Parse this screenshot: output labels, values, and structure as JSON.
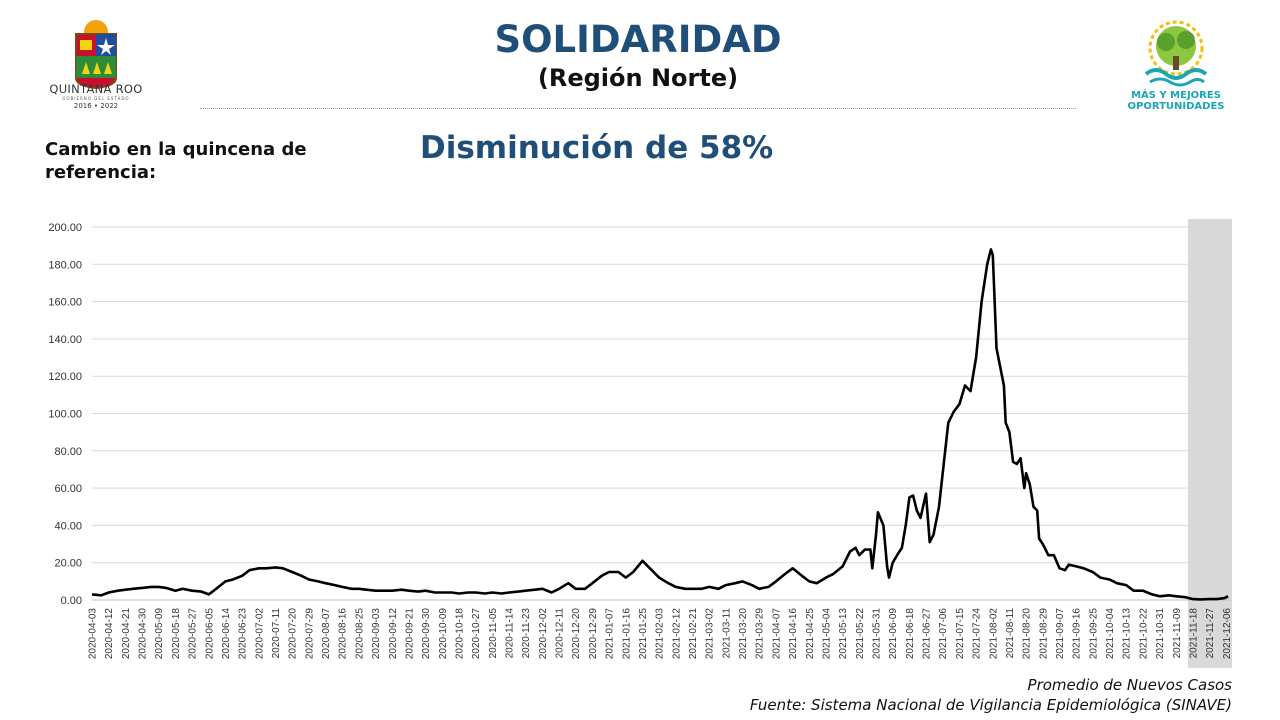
{
  "header": {
    "title": "SOLIDARIDAD",
    "subtitle": "(Región Norte)"
  },
  "logos": {
    "left": {
      "name": "QUINTANA ROO",
      "sub": "GOBIERNO DEL ESTADO",
      "years": "2016 • 2022"
    },
    "right": {
      "line1": "MÁS Y MEJORES",
      "line2": "OPORTUNIDADES"
    }
  },
  "summary": {
    "label": "Cambio en la quincena de referencia:",
    "headline": "Disminución de 58%"
  },
  "footer": {
    "series": "Promedio de Nuevos Casos",
    "source": "Fuente: Sistema Nacional de Vigilancia Epidemiológica (SINAVE)"
  },
  "colors": {
    "title": "#1f4e79",
    "line": "#000000",
    "highlight": "#d9d9d9",
    "grid": "#d9d9d9"
  },
  "chart_data": {
    "type": "line",
    "title": "",
    "xlabel": "",
    "ylabel": "",
    "ylim": [
      0,
      200
    ],
    "yticks": [
      "0.00",
      "20.00",
      "40.00",
      "60.00",
      "80.00",
      "100.00",
      "120.00",
      "140.00",
      "160.00",
      "180.00",
      "200.00"
    ],
    "xticks": [
      "2020-04-03",
      "2020-04-12",
      "2020-04-21",
      "2020-04-30",
      "2020-05-09",
      "2020-05-18",
      "2020-05-27",
      "2020-06-05",
      "2020-06-14",
      "2020-06-23",
      "2020-07-02",
      "2020-07-11",
      "2020-07-20",
      "2020-07-29",
      "2020-08-07",
      "2020-08-16",
      "2020-08-25",
      "2020-09-03",
      "2020-09-12",
      "2020-09-21",
      "2020-09-30",
      "2020-10-09",
      "2020-10-18",
      "2020-10-27",
      "2020-11-05",
      "2020-11-14",
      "2020-11-23",
      "2020-12-02",
      "2020-12-11",
      "2020-12-20",
      "2020-12-29",
      "2021-01-07",
      "2021-01-16",
      "2021-01-25",
      "2021-02-03",
      "2021-02-12",
      "2021-02-21",
      "2021-03-02",
      "2021-03-11",
      "2021-03-20",
      "2021-03-29",
      "2021-04-07",
      "2021-04-16",
      "2021-04-25",
      "2021-05-04",
      "2021-05-13",
      "2021-05-22",
      "2021-05-31",
      "2021-06-09",
      "2021-06-18",
      "2021-06-27",
      "2021-07-06",
      "2021-07-15",
      "2021-07-24",
      "2021-08-02",
      "2021-08-11",
      "2021-08-20",
      "2021-08-29",
      "2021-09-07",
      "2021-09-16",
      "2021-09-25",
      "2021-10-04",
      "2021-10-13",
      "2021-10-22",
      "2021-10-31",
      "2021-11-09",
      "2021-11-18",
      "2021-11-27",
      "2021-12-06"
    ],
    "highlight_range": [
      "2021-11-18",
      "2021-12-08"
    ],
    "grid": true,
    "series": [
      {
        "values": [
          [
            "2020-04-03",
            3
          ],
          [
            "2020-04-08",
            2.5
          ],
          [
            "2020-04-12",
            4
          ],
          [
            "2020-04-17",
            5
          ],
          [
            "2020-04-21",
            5.5
          ],
          [
            "2020-04-25",
            6
          ],
          [
            "2020-04-30",
            6.5
          ],
          [
            "2020-05-05",
            7
          ],
          [
            "2020-05-09",
            7
          ],
          [
            "2020-05-13",
            6.5
          ],
          [
            "2020-05-18",
            5
          ],
          [
            "2020-05-22",
            6
          ],
          [
            "2020-05-27",
            5
          ],
          [
            "2020-06-01",
            4.5
          ],
          [
            "2020-06-05",
            3
          ],
          [
            "2020-06-09",
            6
          ],
          [
            "2020-06-14",
            10
          ],
          [
            "2020-06-18",
            11
          ],
          [
            "2020-06-23",
            13
          ],
          [
            "2020-06-27",
            16
          ],
          [
            "2020-07-02",
            17
          ],
          [
            "2020-07-06",
            17
          ],
          [
            "2020-07-11",
            17.5
          ],
          [
            "2020-07-15",
            17
          ],
          [
            "2020-07-20",
            15
          ],
          [
            "2020-07-25",
            13
          ],
          [
            "2020-07-29",
            11
          ],
          [
            "2020-08-03",
            10
          ],
          [
            "2020-08-07",
            9
          ],
          [
            "2020-08-12",
            8
          ],
          [
            "2020-08-16",
            7
          ],
          [
            "2020-08-21",
            6
          ],
          [
            "2020-08-25",
            6
          ],
          [
            "2020-08-29",
            5.5
          ],
          [
            "2020-09-03",
            5
          ],
          [
            "2020-09-08",
            5
          ],
          [
            "2020-09-12",
            5
          ],
          [
            "2020-09-17",
            5.5
          ],
          [
            "2020-09-21",
            5
          ],
          [
            "2020-09-26",
            4.5
          ],
          [
            "2020-09-30",
            5
          ],
          [
            "2020-10-05",
            4
          ],
          [
            "2020-10-09",
            4
          ],
          [
            "2020-10-14",
            4
          ],
          [
            "2020-10-18",
            3.5
          ],
          [
            "2020-10-23",
            4
          ],
          [
            "2020-10-27",
            4
          ],
          [
            "2020-11-01",
            3.5
          ],
          [
            "2020-11-05",
            4
          ],
          [
            "2020-11-10",
            3.5
          ],
          [
            "2020-11-14",
            4
          ],
          [
            "2020-11-19",
            4.5
          ],
          [
            "2020-11-23",
            5
          ],
          [
            "2020-11-28",
            5.5
          ],
          [
            "2020-12-02",
            6
          ],
          [
            "2020-12-07",
            4
          ],
          [
            "2020-12-11",
            6
          ],
          [
            "2020-12-16",
            9
          ],
          [
            "2020-12-20",
            6
          ],
          [
            "2020-12-25",
            6
          ],
          [
            "2020-12-29",
            9
          ],
          [
            "2021-01-03",
            13
          ],
          [
            "2021-01-07",
            15
          ],
          [
            "2021-01-12",
            15
          ],
          [
            "2021-01-16",
            12
          ],
          [
            "2021-01-20",
            15
          ],
          [
            "2021-01-25",
            21
          ],
          [
            "2021-01-29",
            17
          ],
          [
            "2021-02-03",
            12
          ],
          [
            "2021-02-08",
            9
          ],
          [
            "2021-02-12",
            7
          ],
          [
            "2021-02-17",
            6
          ],
          [
            "2021-02-21",
            6
          ],
          [
            "2021-02-26",
            6
          ],
          [
            "2021-03-02",
            7
          ],
          [
            "2021-03-07",
            6
          ],
          [
            "2021-03-11",
            8
          ],
          [
            "2021-03-16",
            9
          ],
          [
            "2021-03-20",
            10
          ],
          [
            "2021-03-25",
            8
          ],
          [
            "2021-03-29",
            6
          ],
          [
            "2021-04-03",
            7
          ],
          [
            "2021-04-07",
            10
          ],
          [
            "2021-04-12",
            14
          ],
          [
            "2021-04-16",
            17
          ],
          [
            "2021-04-21",
            13
          ],
          [
            "2021-04-25",
            10
          ],
          [
            "2021-04-29",
            9
          ],
          [
            "2021-05-04",
            12
          ],
          [
            "2021-05-08",
            14
          ],
          [
            "2021-05-13",
            18
          ],
          [
            "2021-05-17",
            26
          ],
          [
            "2021-05-20",
            28
          ],
          [
            "2021-05-22",
            24
          ],
          [
            "2021-05-25",
            27
          ],
          [
            "2021-05-28",
            27
          ],
          [
            "2021-05-29",
            17
          ],
          [
            "2021-05-31",
            35
          ],
          [
            "2021-06-01",
            47
          ],
          [
            "2021-06-04",
            40
          ],
          [
            "2021-06-06",
            18
          ],
          [
            "2021-06-07",
            12
          ],
          [
            "2021-06-09",
            20
          ],
          [
            "2021-06-12",
            25
          ],
          [
            "2021-06-14",
            28
          ],
          [
            "2021-06-16",
            40
          ],
          [
            "2021-06-18",
            55
          ],
          [
            "2021-06-20",
            56
          ],
          [
            "2021-06-22",
            48
          ],
          [
            "2021-06-24",
            44
          ],
          [
            "2021-06-27",
            57
          ],
          [
            "2021-06-29",
            31
          ],
          [
            "2021-07-01",
            35
          ],
          [
            "2021-07-04",
            50
          ],
          [
            "2021-07-06",
            68
          ],
          [
            "2021-07-09",
            95
          ],
          [
            "2021-07-12",
            101
          ],
          [
            "2021-07-15",
            105
          ],
          [
            "2021-07-18",
            115
          ],
          [
            "2021-07-21",
            112
          ],
          [
            "2021-07-24",
            130
          ],
          [
            "2021-07-27",
            160
          ],
          [
            "2021-07-30",
            180
          ],
          [
            "2021-08-01",
            188
          ],
          [
            "2021-08-02",
            185
          ],
          [
            "2021-08-04",
            135
          ],
          [
            "2021-08-06",
            125
          ],
          [
            "2021-08-08",
            115
          ],
          [
            "2021-08-09",
            95
          ],
          [
            "2021-08-11",
            90
          ],
          [
            "2021-08-13",
            74
          ],
          [
            "2021-08-15",
            73
          ],
          [
            "2021-08-17",
            76
          ],
          [
            "2021-08-19",
            60
          ],
          [
            "2021-08-20",
            68
          ],
          [
            "2021-08-22",
            62
          ],
          [
            "2021-08-24",
            50
          ],
          [
            "2021-08-26",
            48
          ],
          [
            "2021-08-27",
            33
          ],
          [
            "2021-08-29",
            30
          ],
          [
            "2021-09-01",
            24
          ],
          [
            "2021-09-04",
            24
          ],
          [
            "2021-09-07",
            17
          ],
          [
            "2021-09-10",
            16
          ],
          [
            "2021-09-12",
            19
          ],
          [
            "2021-09-16",
            18
          ],
          [
            "2021-09-20",
            17
          ],
          [
            "2021-09-25",
            15
          ],
          [
            "2021-09-29",
            12
          ],
          [
            "2021-10-04",
            11
          ],
          [
            "2021-10-08",
            9
          ],
          [
            "2021-10-13",
            8
          ],
          [
            "2021-10-17",
            5
          ],
          [
            "2021-10-22",
            5
          ],
          [
            "2021-10-27",
            3
          ],
          [
            "2021-10-31",
            2
          ],
          [
            "2021-11-05",
            2.5
          ],
          [
            "2021-11-09",
            2
          ],
          [
            "2021-11-14",
            1.5
          ],
          [
            "2021-11-18",
            0.5
          ],
          [
            "2021-11-22",
            0.3
          ],
          [
            "2021-11-27",
            0.5
          ],
          [
            "2021-12-01",
            0.5
          ],
          [
            "2021-12-05",
            1
          ],
          [
            "2021-12-07",
            2
          ]
        ]
      }
    ]
  }
}
